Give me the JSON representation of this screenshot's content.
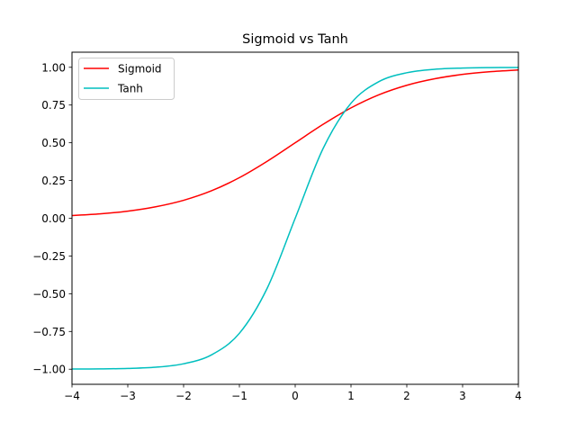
{
  "chart_data": {
    "type": "line",
    "title": "Sigmoid vs Tanh",
    "xlabel": "",
    "ylabel": "",
    "xlim": [
      -4,
      4
    ],
    "ylim": [
      -1.1,
      1.1
    ],
    "x_ticks": [
      -4,
      -3,
      -2,
      -1,
      0,
      1,
      2,
      3,
      4
    ],
    "x_tick_labels": [
      "−4",
      "−3",
      "−2",
      "−1",
      "0",
      "1",
      "2",
      "3",
      "4"
    ],
    "y_ticks": [
      -1.0,
      -0.75,
      -0.5,
      -0.25,
      0.0,
      0.25,
      0.5,
      0.75,
      1.0
    ],
    "y_tick_labels": [
      "−1.00",
      "−0.75",
      "−0.50",
      "−0.25",
      "0.00",
      "0.25",
      "0.50",
      "0.75",
      "1.00"
    ],
    "grid": false,
    "legend_position": "top-left",
    "x": [
      -4,
      -3.5,
      -3,
      -2.5,
      -2,
      -1.5,
      -1,
      -0.5,
      0,
      0.5,
      1,
      1.5,
      2,
      2.5,
      3,
      3.5,
      4
    ],
    "series": [
      {
        "name": "Sigmoid",
        "color": "#ff0000",
        "values": [
          0.018,
          0.029,
          0.047,
          0.076,
          0.119,
          0.182,
          0.269,
          0.378,
          0.5,
          0.622,
          0.731,
          0.818,
          0.881,
          0.924,
          0.953,
          0.971,
          0.982
        ]
      },
      {
        "name": "Tanh",
        "color": "#00bfbf",
        "values": [
          -0.999,
          -0.998,
          -0.995,
          -0.987,
          -0.964,
          -0.905,
          -0.762,
          -0.462,
          0.0,
          0.462,
          0.762,
          0.905,
          0.964,
          0.987,
          0.995,
          0.998,
          0.999
        ]
      }
    ]
  }
}
